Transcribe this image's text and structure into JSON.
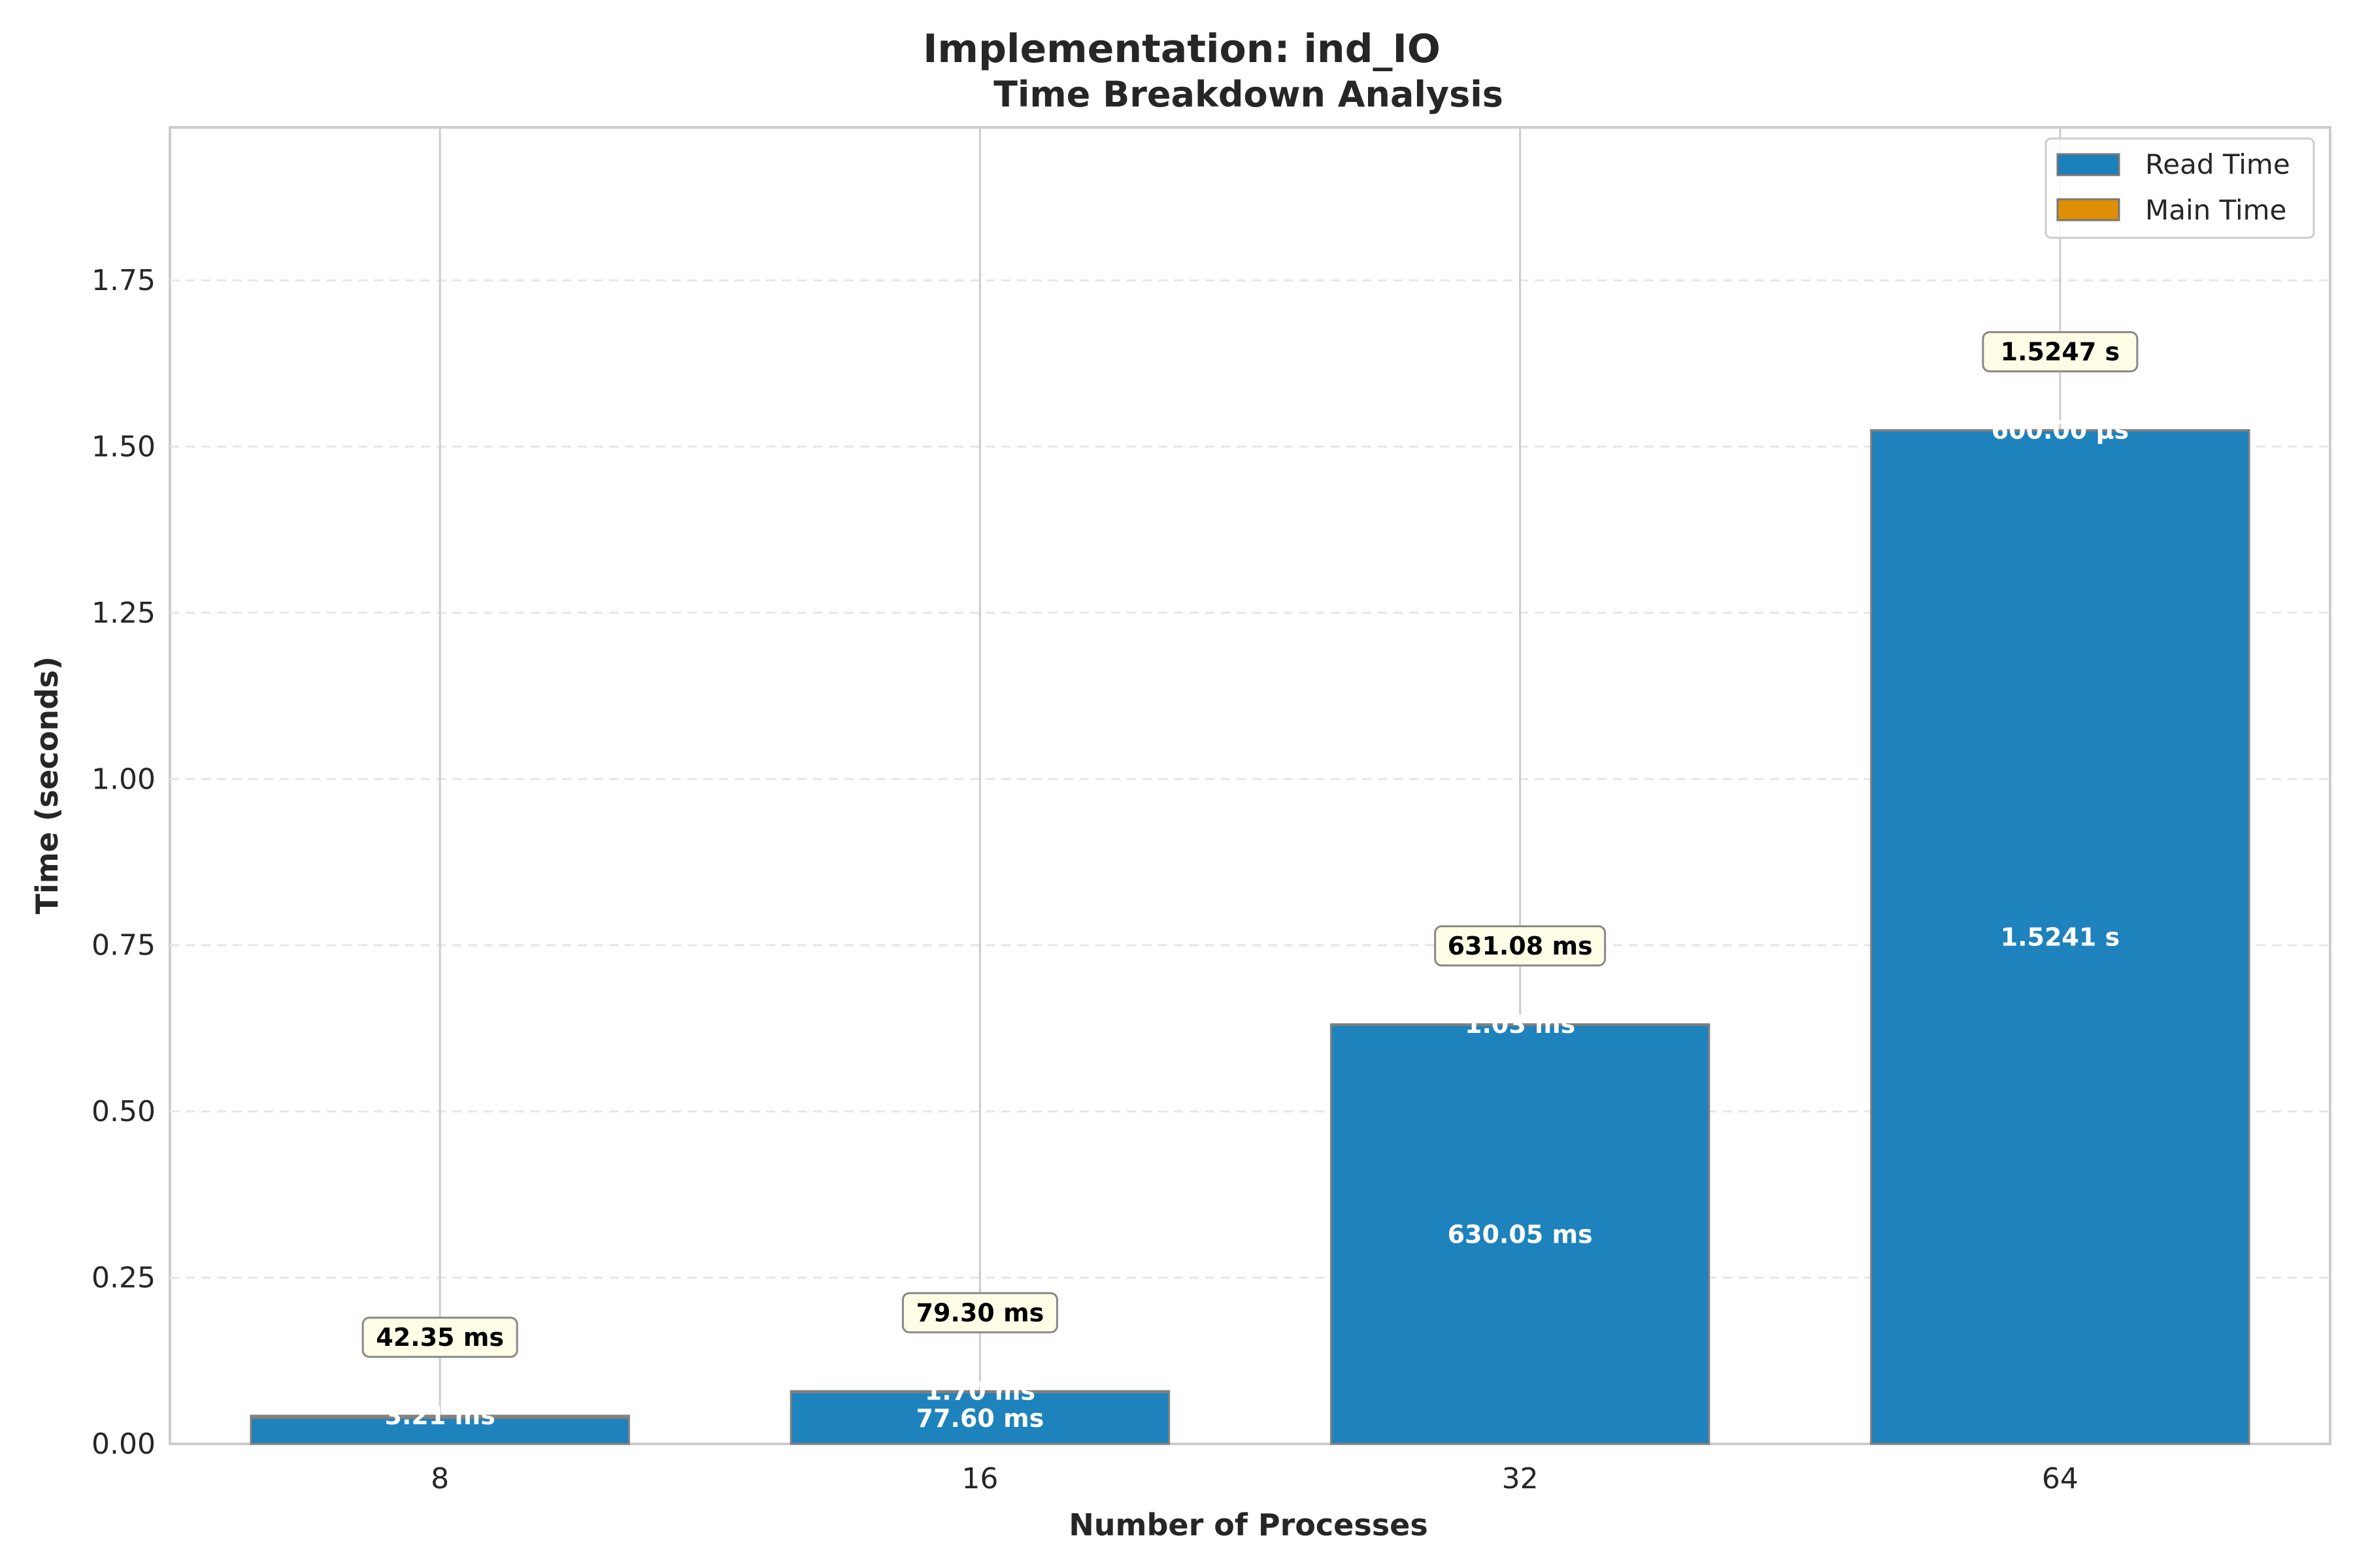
{
  "chart_data": {
    "type": "bar",
    "stacked": true,
    "title": "Implementation: ind_IO",
    "subtitle": "Time Breakdown Analysis",
    "xlabel": "Number of Processes",
    "ylabel": "Time (seconds)",
    "categories": [
      "8",
      "16",
      "32",
      "64"
    ],
    "ylim": [
      0,
      1.98
    ],
    "yticks": [
      0.0,
      0.25,
      0.5,
      0.75,
      1.0,
      1.25,
      1.5,
      1.75
    ],
    "ytick_labels": [
      "0.00",
      "0.25",
      "0.50",
      "0.75",
      "1.00",
      "1.25",
      "1.50",
      "1.75"
    ],
    "grid": true,
    "legend_position": "top-right",
    "series": [
      {
        "name": "Read Time",
        "color": "#1a80bb",
        "values": [
          0.03914,
          0.0776,
          0.63005,
          1.5241
        ],
        "labels": [
          "",
          "77.60 ms",
          "630.05 ms",
          "1.5241 s"
        ]
      },
      {
        "name": "Main Time",
        "color": "#de8f05",
        "values": [
          0.00321,
          0.0017,
          0.00103,
          0.0006
        ],
        "labels": [
          "3.21 ms",
          "1.70 ms",
          "1.03 ms",
          "600.00 µs"
        ]
      }
    ],
    "totals": [
      0.04235,
      0.0793,
      0.63108,
      1.5247
    ],
    "total_labels": [
      "42.35 ms",
      "79.30 ms",
      "631.08 ms",
      "1.5247 s"
    ]
  }
}
